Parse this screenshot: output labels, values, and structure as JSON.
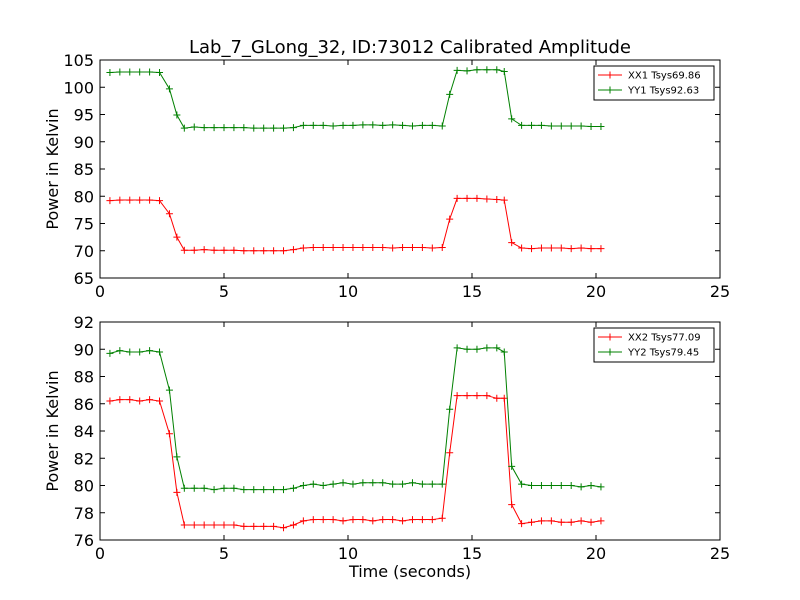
{
  "chart_data": [
    {
      "type": "line",
      "title": "Lab_7_GLong_32, ID:73012 Calibrated Amplitude",
      "xlabel": "",
      "ylabel": "Power in Kelvin",
      "xlim": [
        0,
        25
      ],
      "ylim": [
        65,
        105
      ],
      "xticks": [
        0,
        5,
        10,
        15,
        20,
        25
      ],
      "yticks": [
        65,
        70,
        75,
        80,
        85,
        90,
        95,
        100,
        105
      ],
      "grid": false,
      "legend": "top-right",
      "x": [
        0.4,
        0.8,
        1.2,
        1.6,
        2.0,
        2.4,
        2.8,
        3.1,
        3.4,
        3.8,
        4.2,
        4.6,
        5.0,
        5.4,
        5.8,
        6.2,
        6.6,
        7.0,
        7.4,
        7.8,
        8.2,
        8.6,
        9.0,
        9.4,
        9.8,
        10.2,
        10.6,
        11.0,
        11.4,
        11.8,
        12.2,
        12.6,
        13.0,
        13.4,
        13.8,
        14.1,
        14.4,
        14.8,
        15.2,
        15.6,
        16.0,
        16.3,
        16.6,
        17.0,
        17.4,
        17.8,
        18.2,
        18.6,
        19.0,
        19.4,
        19.8,
        20.2
      ],
      "series": [
        {
          "name": "XX1 Tsys69.86",
          "color": "#ff0000",
          "values": [
            79.2,
            79.3,
            79.3,
            79.3,
            79.3,
            79.2,
            76.8,
            72.5,
            70.1,
            70.1,
            70.2,
            70.1,
            70.1,
            70.1,
            70.0,
            70.0,
            70.0,
            70.0,
            70.0,
            70.2,
            70.5,
            70.6,
            70.6,
            70.6,
            70.6,
            70.6,
            70.6,
            70.6,
            70.6,
            70.5,
            70.6,
            70.6,
            70.6,
            70.5,
            70.6,
            75.8,
            79.6,
            79.6,
            79.6,
            79.5,
            79.4,
            79.3,
            71.5,
            70.5,
            70.4,
            70.5,
            70.5,
            70.5,
            70.4,
            70.5,
            70.4,
            70.4
          ]
        },
        {
          "name": "YY1 Tsys92.63",
          "color": "#008000",
          "values": [
            102.7,
            102.8,
            102.8,
            102.8,
            102.8,
            102.7,
            99.7,
            94.9,
            92.5,
            92.7,
            92.6,
            92.6,
            92.6,
            92.6,
            92.6,
            92.5,
            92.5,
            92.5,
            92.5,
            92.6,
            93.0,
            93.0,
            93.0,
            92.9,
            93.0,
            93.0,
            93.1,
            93.1,
            93.0,
            93.1,
            93.0,
            92.9,
            93.0,
            93.0,
            92.9,
            98.7,
            103.1,
            103.0,
            103.2,
            103.2,
            103.2,
            102.9,
            94.2,
            93.0,
            93.0,
            93.0,
            92.9,
            92.9,
            92.9,
            92.9,
            92.8,
            92.8
          ]
        }
      ]
    },
    {
      "type": "line",
      "title": "",
      "xlabel": "Time (seconds)",
      "ylabel": "Power in Kelvin",
      "xlim": [
        0,
        25
      ],
      "ylim": [
        76,
        92
      ],
      "xticks": [
        0,
        5,
        10,
        15,
        20,
        25
      ],
      "yticks": [
        76,
        78,
        80,
        82,
        84,
        86,
        88,
        90,
        92
      ],
      "grid": false,
      "legend": "top-right",
      "x": [
        0.4,
        0.8,
        1.2,
        1.6,
        2.0,
        2.4,
        2.8,
        3.1,
        3.4,
        3.8,
        4.2,
        4.6,
        5.0,
        5.4,
        5.8,
        6.2,
        6.6,
        7.0,
        7.4,
        7.8,
        8.2,
        8.6,
        9.0,
        9.4,
        9.8,
        10.2,
        10.6,
        11.0,
        11.4,
        11.8,
        12.2,
        12.6,
        13.0,
        13.4,
        13.8,
        14.1,
        14.4,
        14.8,
        15.2,
        15.6,
        16.0,
        16.3,
        16.6,
        17.0,
        17.4,
        17.8,
        18.2,
        18.6,
        19.0,
        19.4,
        19.8,
        20.2
      ],
      "series": [
        {
          "name": "XX2 Tsys77.09",
          "color": "#ff0000",
          "values": [
            86.2,
            86.3,
            86.3,
            86.2,
            86.3,
            86.2,
            83.8,
            79.5,
            77.1,
            77.1,
            77.1,
            77.1,
            77.1,
            77.1,
            77.0,
            77.0,
            77.0,
            77.0,
            76.9,
            77.1,
            77.4,
            77.5,
            77.5,
            77.5,
            77.4,
            77.5,
            77.5,
            77.4,
            77.5,
            77.5,
            77.4,
            77.5,
            77.5,
            77.5,
            77.6,
            82.4,
            86.6,
            86.6,
            86.6,
            86.6,
            86.4,
            86.4,
            78.6,
            77.2,
            77.3,
            77.4,
            77.4,
            77.3,
            77.3,
            77.4,
            77.3,
            77.4
          ]
        },
        {
          "name": "YY2 Tsys79.45",
          "color": "#008000",
          "values": [
            89.7,
            89.9,
            89.8,
            89.8,
            89.9,
            89.8,
            87.0,
            82.1,
            79.8,
            79.8,
            79.8,
            79.7,
            79.8,
            79.8,
            79.7,
            79.7,
            79.7,
            79.7,
            79.7,
            79.8,
            80.0,
            80.1,
            80.0,
            80.1,
            80.2,
            80.1,
            80.2,
            80.2,
            80.2,
            80.1,
            80.1,
            80.2,
            80.1,
            80.1,
            80.1,
            85.6,
            90.1,
            90.0,
            90.0,
            90.1,
            90.1,
            89.8,
            81.4,
            80.1,
            80.0,
            80.0,
            80.0,
            80.0,
            80.0,
            79.9,
            80.0,
            79.9
          ]
        }
      ]
    }
  ]
}
